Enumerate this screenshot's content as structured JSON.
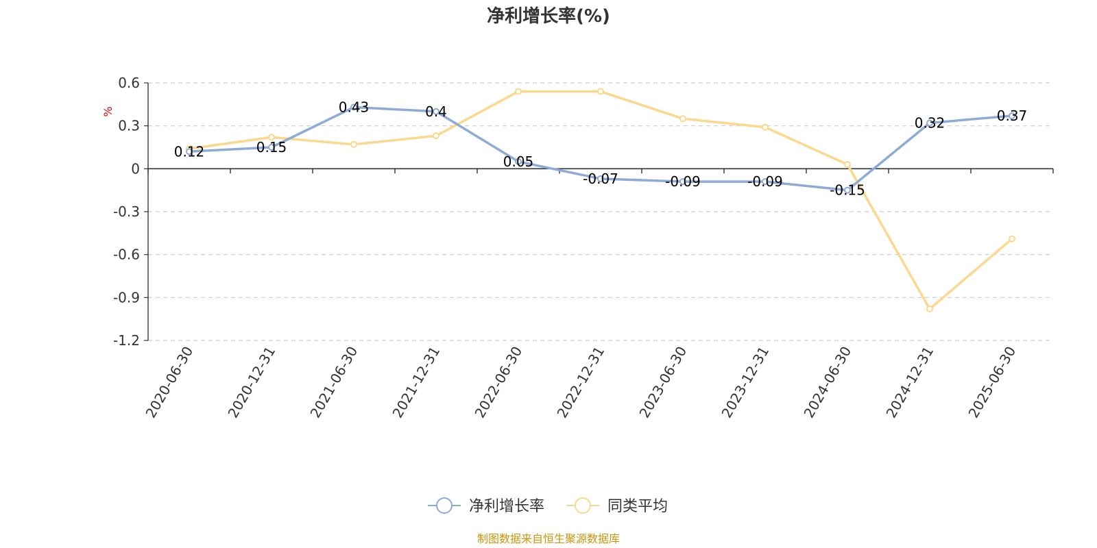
{
  "chart_data": {
    "type": "line",
    "title": "净利增长率(%)",
    "ylabel": "%",
    "ylim": [
      -1.2,
      0.6
    ],
    "yticks": [
      0.6,
      0.3,
      0,
      -0.3,
      -0.6,
      -0.9,
      -1.2
    ],
    "ytick_labels": [
      "0.6",
      "0.3",
      "0",
      "-0.3",
      "-0.6",
      "-0.9",
      "-1.2"
    ],
    "categories": [
      "2020-06-30",
      "2020-12-31",
      "2021-06-30",
      "2021-12-31",
      "2022-06-30",
      "2022-12-31",
      "2023-06-30",
      "2023-12-31",
      "2024-06-30",
      "2024-12-31",
      "2025-06-30"
    ],
    "grid": true,
    "legend_position": "bottom-center",
    "series": [
      {
        "name": "净利增长率",
        "color": "#8eaad6",
        "values": [
          0.12,
          0.15,
          0.43,
          0.4,
          0.05,
          -0.07,
          -0.09,
          -0.09,
          -0.15,
          0.32,
          0.37
        ],
        "labels": [
          "0.12",
          "0.15",
          "0.43",
          "0.4",
          "0.05",
          "-0.07",
          "-0.09",
          "-0.09",
          "-0.15",
          "0.32",
          "0.37"
        ]
      },
      {
        "name": "同类平均",
        "color": "#fbd88e",
        "values": [
          0.14,
          0.22,
          0.17,
          0.23,
          0.54,
          0.54,
          0.35,
          0.29,
          0.03,
          -0.98,
          -0.49
        ]
      }
    ],
    "source": "制图数据来自恒生聚源数据库"
  }
}
